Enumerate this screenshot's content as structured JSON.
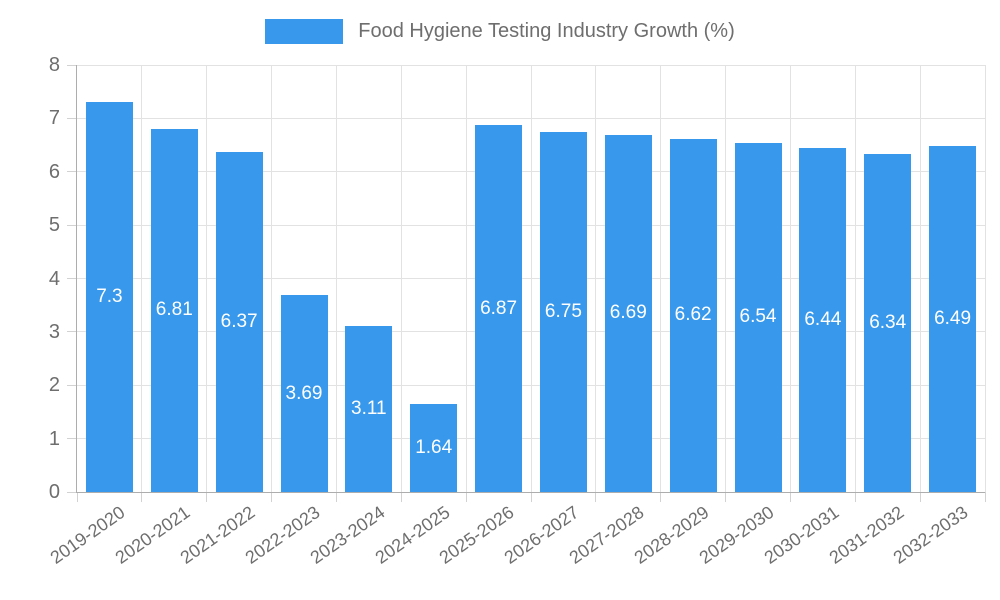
{
  "chart_data": {
    "type": "bar",
    "title": "Food Hygiene Testing Industry Growth (%)",
    "categories": [
      "2019-2020",
      "2020-2021",
      "2021-2022",
      "2022-2023",
      "2023-2024",
      "2024-2025",
      "2025-2026",
      "2026-2027",
      "2027-2028",
      "2028-2029",
      "2029-2030",
      "2030-2031",
      "2031-2032",
      "2032-2033"
    ],
    "values": [
      7.3,
      6.81,
      6.37,
      3.69,
      3.11,
      1.64,
      6.87,
      6.75,
      6.69,
      6.62,
      6.54,
      6.44,
      6.34,
      6.49
    ],
    "xlabel": "",
    "ylabel": "",
    "ylim": [
      0,
      8
    ],
    "yticks": [
      0,
      1,
      2,
      3,
      4,
      5,
      6,
      7,
      8
    ],
    "grid": true,
    "legend_position": "top",
    "value_labels": "inside-center",
    "colors": {
      "bar": "#3899EC",
      "grid": "#E2E2E2",
      "axis": "#ADADAD",
      "tick": "#D2D2D2",
      "text": "#6E6E6E",
      "bar_label": "#FFFFFF",
      "background": "#FFFFFF"
    }
  }
}
